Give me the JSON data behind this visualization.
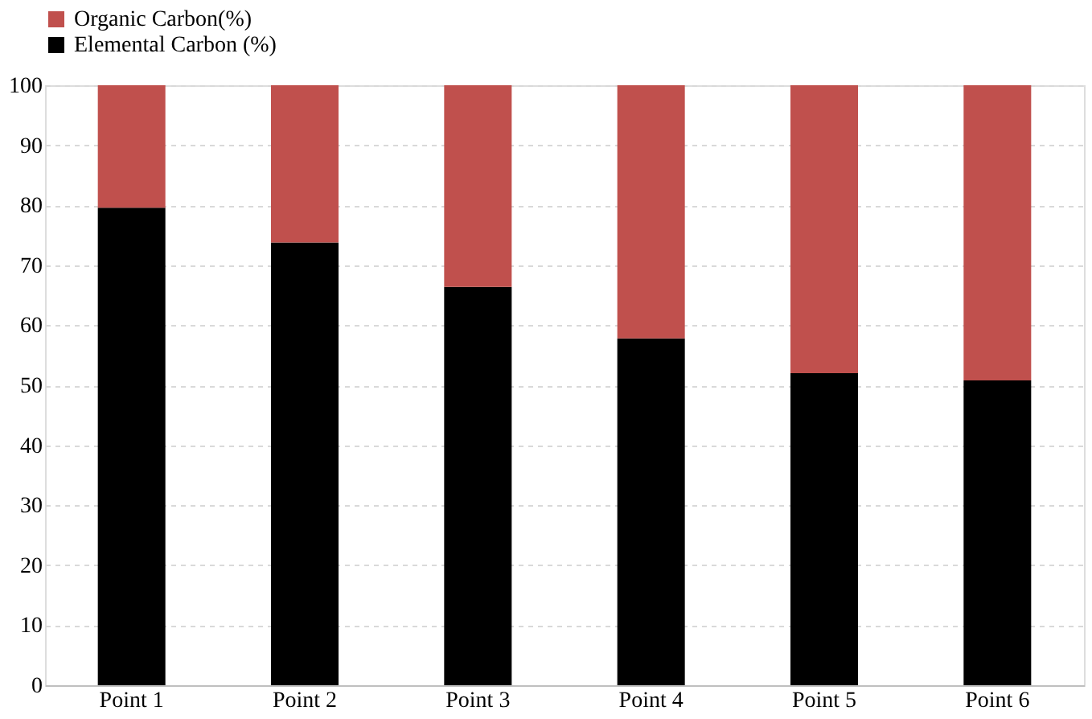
{
  "chart_data": {
    "type": "bar",
    "stacked": true,
    "categories": [
      "Point 1",
      "Point 2",
      "Point 3",
      "Point 4",
      "Point 5",
      "Point 6"
    ],
    "series": [
      {
        "name": "Elemental Carbon (%)",
        "color": "#000000",
        "values": [
          79.6,
          73.8,
          66.4,
          57.8,
          52,
          50.8
        ]
      },
      {
        "name": "Organic Carbon(%)",
        "color": "#c0504d",
        "values": [
          20.4,
          26.2,
          33.6,
          42.2,
          48,
          49.2
        ]
      }
    ],
    "ylim": [
      0,
      100
    ],
    "yticks": [
      0,
      10,
      20,
      30,
      40,
      50,
      60,
      70,
      80,
      90,
      100
    ],
    "grid": "y",
    "legend": "top"
  }
}
